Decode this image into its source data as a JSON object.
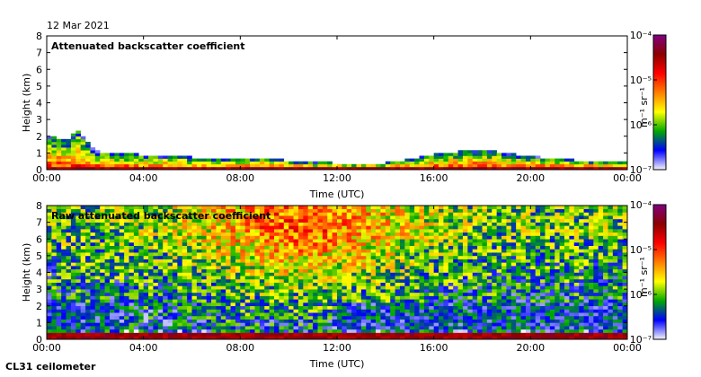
{
  "date_label": "12 Mar 2021",
  "footer_label": "CL31 ceilometer",
  "colors": {
    "gradient": [
      "#f5f5fa",
      "#0000ff",
      "#00aa00",
      "#ffff00",
      "#ff7f00",
      "#ff0000",
      "#8b0000",
      "#800080"
    ]
  },
  "chart_data": [
    {
      "type": "heatmap",
      "title": "Attenuated backscatter coefficient",
      "xlabel": "Time (UTC)",
      "ylabel": "Height (km)",
      "xlim": [
        "00:00",
        "24:00"
      ],
      "ylim": [
        0,
        8
      ],
      "x_ticks": [
        "00:00",
        "04:00",
        "08:00",
        "12:00",
        "16:00",
        "20:00",
        "00:00"
      ],
      "y_ticks": [
        "0",
        "1",
        "2",
        "3",
        "4",
        "5",
        "6",
        "7",
        "8"
      ],
      "colorbar": {
        "label": "m⁻¹ sr⁻¹",
        "scale": "log",
        "range": [
          1e-07,
          0.0001
        ],
        "ticks": [
          "10⁻⁴",
          "10⁻⁵",
          "10⁻⁶",
          "10⁻⁷"
        ]
      },
      "signal_top_km": [
        {
          "t": 0.0,
          "h": 2.0
        },
        {
          "t": 1.0,
          "h": 1.8
        },
        {
          "t": 1.2,
          "h": 2.6
        },
        {
          "t": 2.0,
          "h": 1.1
        },
        {
          "t": 4.0,
          "h": 0.9
        },
        {
          "t": 6.0,
          "h": 0.75
        },
        {
          "t": 8.0,
          "h": 0.6
        },
        {
          "t": 9.0,
          "h": 0.75
        },
        {
          "t": 10.0,
          "h": 0.55
        },
        {
          "t": 12.0,
          "h": 0.4
        },
        {
          "t": 14.0,
          "h": 0.4
        },
        {
          "t": 16.0,
          "h": 0.9
        },
        {
          "t": 17.0,
          "h": 1.1
        },
        {
          "t": 18.0,
          "h": 1.2
        },
        {
          "t": 20.0,
          "h": 0.8
        },
        {
          "t": 22.0,
          "h": 0.55
        },
        {
          "t": 24.0,
          "h": 0.5
        }
      ]
    },
    {
      "type": "heatmap",
      "title": "Raw attenuated backscatter coefficient",
      "xlabel": "Time (UTC)",
      "ylabel": "Height (km)",
      "xlim": [
        "00:00",
        "24:00"
      ],
      "ylim": [
        0,
        8
      ],
      "x_ticks": [
        "00:00",
        "04:00",
        "08:00",
        "12:00",
        "16:00",
        "20:00",
        "00:00"
      ],
      "y_ticks": [
        "0",
        "1",
        "2",
        "3",
        "4",
        "5",
        "6",
        "7",
        "8"
      ],
      "colorbar": {
        "label": "m⁻¹ sr⁻¹",
        "scale": "log",
        "range": [
          1e-07,
          0.0001
        ],
        "ticks": [
          "10⁻⁴",
          "10⁻⁵",
          "10⁻⁶",
          "10⁻⁷"
        ]
      }
    }
  ]
}
